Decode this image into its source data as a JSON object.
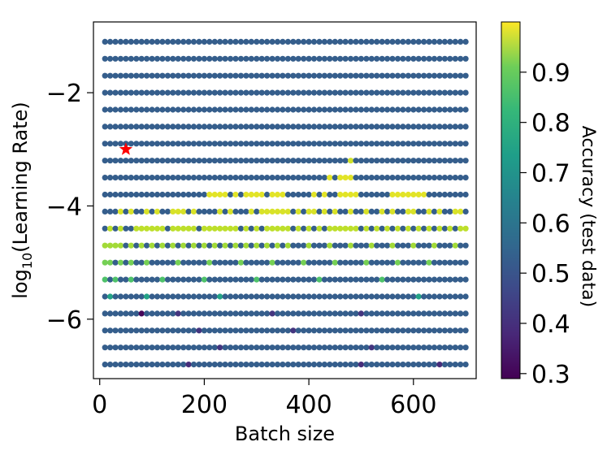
{
  "chart_data": {
    "type": "scatter",
    "xlabel": "Batch size",
    "ylabel_prefix": "log",
    "ylabel_sub": "10",
    "ylabel_suffix": "(Learning Rate)",
    "xlim": [
      -12,
      720
    ],
    "ylim": [
      -7.05,
      -0.75
    ],
    "xticks": [
      0,
      200,
      400,
      600
    ],
    "xtick_labels": [
      "0",
      "200",
      "400",
      "600"
    ],
    "yticks": [
      -6,
      -4,
      -2
    ],
    "ytick_labels": [
      "−6",
      "−4",
      "−2"
    ],
    "grid": false,
    "colormap": "viridis",
    "colorbar": {
      "label": "Accuracy (test data)",
      "range": [
        0.29,
        1.0
      ],
      "ticks": [
        0.3,
        0.4,
        0.5,
        0.6,
        0.7,
        0.8,
        0.9
      ],
      "tick_labels": [
        "0.3",
        "0.4",
        "0.5",
        "0.6",
        "0.7",
        "0.8",
        "0.9"
      ]
    },
    "x_grid": {
      "start": 10,
      "stop": 700,
      "step": 10
    },
    "y_rows": [
      -1.1,
      -1.4,
      -1.7,
      -2.0,
      -2.3,
      -2.6,
      -2.9,
      -3.2,
      -3.5,
      -3.8,
      -4.1,
      -4.4,
      -4.7,
      -5.0,
      -5.3,
      -5.6,
      -5.9,
      -6.2,
      -6.5,
      -6.8
    ],
    "default_accuracy": 0.5,
    "accuracy_highlights": [
      {
        "y": -3.2,
        "x": [
          480
        ],
        "acc": 0.95
      },
      {
        "y": -3.5,
        "x": [
          440,
          460,
          470,
          480
        ],
        "acc": 0.97
      },
      {
        "y": -3.8,
        "x": [
          210,
          220,
          230,
          240,
          260,
          280,
          290,
          300,
          310,
          330,
          340,
          350,
          410,
          430,
          460,
          470,
          480,
          490,
          560,
          570,
          580,
          590,
          600,
          610,
          620
        ],
        "acc": 0.97
      },
      {
        "y": -4.1,
        "x": [
          40,
          60,
          90,
          110,
          140,
          150,
          160,
          180,
          230,
          250,
          290,
          310,
          320,
          330,
          340,
          350,
          360,
          380,
          400,
          410,
          430,
          450,
          480,
          510,
          540,
          560,
          590,
          600,
          630,
          650,
          680,
          690
        ],
        "acc": 0.96
      },
      {
        "y": -4.4,
        "x": [
          20,
          40,
          70,
          80,
          90,
          100,
          110,
          120,
          140,
          150,
          160,
          170,
          180,
          200,
          210,
          220,
          230,
          240,
          250,
          260,
          280,
          300,
          320,
          330,
          340,
          350,
          360,
          380,
          400,
          420,
          440,
          450,
          460,
          470,
          480,
          490,
          510,
          530,
          550,
          570,
          590,
          610,
          630,
          650,
          670,
          690,
          700
        ],
        "acc": 0.93
      },
      {
        "y": -4.7,
        "x": [
          10,
          20,
          30,
          40,
          60,
          80,
          100,
          120,
          140,
          160,
          180,
          200,
          220,
          240,
          260,
          280,
          300,
          320,
          340,
          360,
          400,
          440,
          480,
          520,
          560,
          600,
          640,
          680
        ],
        "acc": 0.9
      },
      {
        "y": -5.0,
        "x": [
          10,
          20,
          40,
          60,
          90,
          150,
          210,
          270,
          330,
          390,
          450,
          510,
          570,
          630
        ],
        "acc": 0.85
      },
      {
        "y": -5.3,
        "x": [
          10,
          30,
          60,
          120,
          200,
          300,
          420,
          540
        ],
        "acc": 0.8
      },
      {
        "y": -5.6,
        "x": [
          20,
          90,
          230,
          610
        ],
        "acc": 0.7
      },
      {
        "y": -5.9,
        "x": [
          80
        ],
        "acc": 0.3
      },
      {
        "y": -5.9,
        "x": [
          150,
          330,
          500
        ],
        "acc": 0.4
      },
      {
        "y": -6.2,
        "x": [
          190,
          370
        ],
        "acc": 0.4
      },
      {
        "y": -6.5,
        "x": [
          230,
          520
        ],
        "acc": 0.4
      },
      {
        "y": -6.8,
        "x": [
          170,
          500,
          650
        ],
        "acc": 0.38
      }
    ],
    "best_marker": {
      "x": 50,
      "y": -3.0,
      "color": "#ff0000",
      "shape": "star"
    }
  }
}
